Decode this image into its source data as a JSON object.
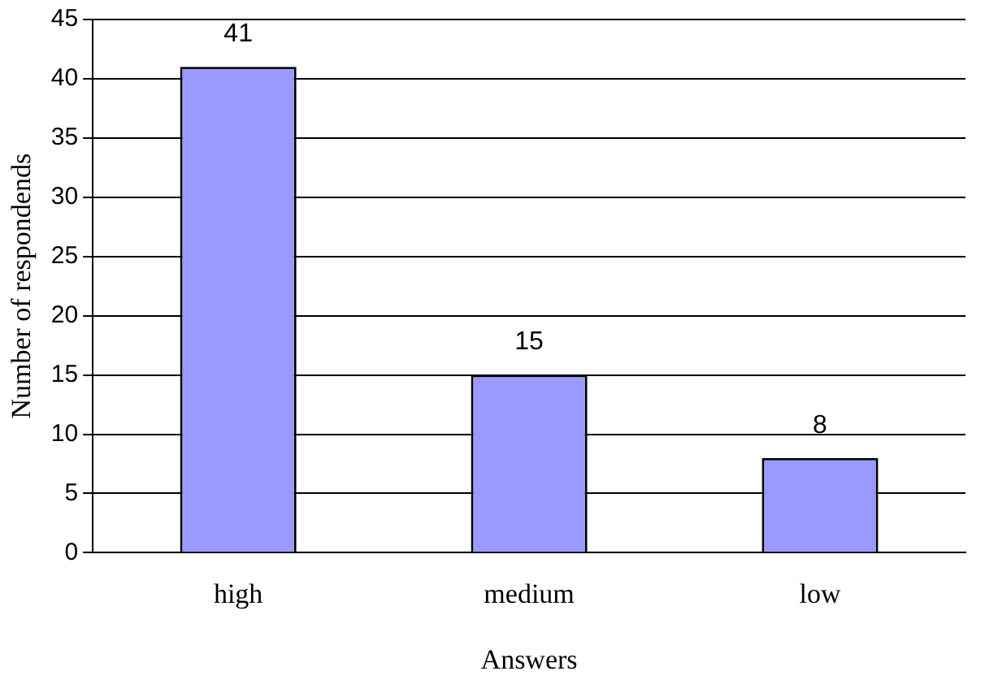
{
  "chart_data": {
    "type": "bar",
    "xlabel": "Answers",
    "ylabel": "Number of respondends",
    "categories": [
      "high",
      "medium",
      "low"
    ],
    "values": [
      41,
      15,
      8
    ],
    "color": "#9999ff",
    "ylim": [
      0,
      45
    ],
    "yticks": [
      0,
      5,
      10,
      15,
      20,
      25,
      30,
      35,
      40,
      45
    ],
    "grid": "y",
    "data_labels": true,
    "legend": false
  }
}
